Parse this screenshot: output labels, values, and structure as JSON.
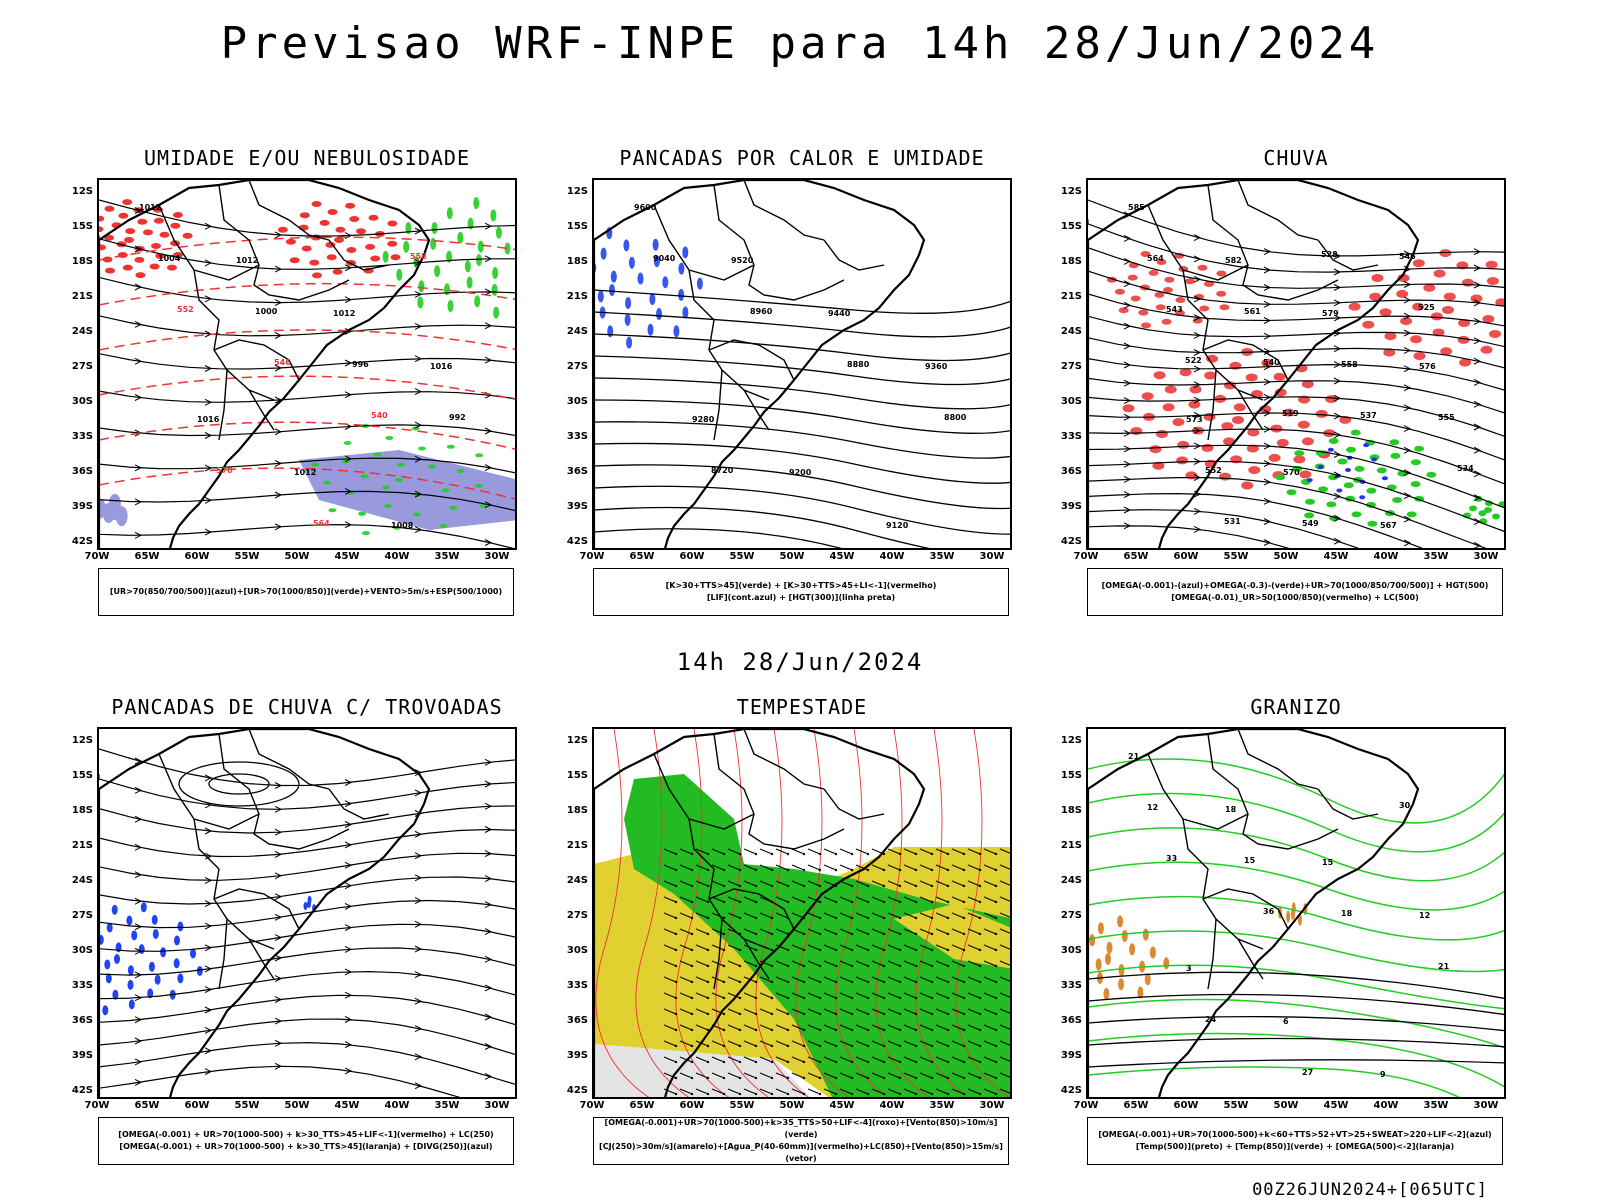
{
  "title": "Previsao WRF-INPE  para 14h 28/Jun/2024",
  "subtitle": "14h 28/Jun/2024",
  "footer": "00Z26JUN2024+[065UTC]",
  "lat_labels": [
    "12S",
    "15S",
    "18S",
    "21S",
    "24S",
    "27S",
    "30S",
    "33S",
    "36S",
    "39S",
    "42S"
  ],
  "lon_labels": [
    "70W",
    "65W",
    "60W",
    "55W",
    "50W",
    "45W",
    "40W",
    "35W",
    "30W"
  ],
  "panels": [
    {
      "title": "UMIDADE E/OU NEBULOSIDADE",
      "legend": [
        "[UR>70(850/700/500)](azul)+[UR>70(1000/850)](verde)+VENTO>5m/s+ESP(500/1000)"
      ],
      "contours": [
        "1012",
        "1012",
        "1012",
        "1016",
        "1016",
        "1012",
        "1008",
        "1004",
        "1000",
        "996",
        "992",
        "570",
        "564",
        "558",
        "552",
        "546",
        "540"
      ],
      "colors": {
        "blue": "#9999dd",
        "green": "#22cc22",
        "red": "#ee3333"
      }
    },
    {
      "title": "PANCADAS POR CALOR E UMIDADE",
      "legend": [
        "[K>30+TTS>45](verde) + [K>30+TTS>45+LI<-1](vermelho)",
        "[LIF](cont.azul) + [HGT(300)](linha preta)"
      ],
      "contours": [
        "9600",
        "9520",
        "9440",
        "9360",
        "9280",
        "9200",
        "9120",
        "9040",
        "8960",
        "8880",
        "8800",
        "8720"
      ],
      "colors": {
        "blue": "#2244ee"
      }
    },
    {
      "title": "CHUVA",
      "legend": [
        "[OMEGA(-0.001)-(azul)+OMEGA(-0.3)-(verde)+UR>70(1000/850/700/500)] + HGT(500)",
        "[OMEGA(-0.01)_UR>50(1000/850)(vermelho) + LC(500)"
      ],
      "contours": [
        "585",
        "582",
        "579",
        "576",
        "573",
        "570",
        "567",
        "564",
        "561",
        "558",
        "555",
        "552",
        "549",
        "546",
        "543",
        "540",
        "537",
        "534",
        "531",
        "528",
        "525",
        "522",
        "519"
      ],
      "colors": {
        "red": "#ee4444",
        "green": "#22cc22",
        "blue": "#2233ee"
      }
    },
    {
      "title": "PANCADAS DE CHUVA C/ TROVOADAS",
      "legend": [
        "[OMEGA(-0.001) + UR>70(1000-500) + k>30_TTS>45+LIF<-1](vermelho) + LC(250)",
        "[OMEGA(-0.001) + UR>70(1000-500) + k>30_TTS>45](laranja) + [DIVG(250)](azul)"
      ],
      "contours": [],
      "colors": {
        "blue": "#2244ee"
      }
    },
    {
      "title": "TEMPESTADE",
      "legend": [
        "[OMEGA(-0.001)+UR>70(1000-500)+k>35_TTS>50+LIF<-4](roxo)+[Vento(850)>10m/s](verde)",
        "[CJ(250)>30m/s](amarelo)+[Agua_P(40-60mm)](vermelho)+LC(850)+[Vento(850)>15m/s](vetor)"
      ],
      "contours": [],
      "colors": {
        "yellow": "#e0d030",
        "green": "#22bb22",
        "red": "#ee3333",
        "gray": "#e4e4e4"
      }
    },
    {
      "title": "GRANIZO",
      "legend": [
        "[OMEGA(-0.001)+UR>70(1000-500)+k<60+TTS>52+VT>25+SWEAT>220+LIF<-2](azul)",
        "[Temp(500)](preto) + [Temp(850)](verde) + [OMEGA(500)<-2](laranja)"
      ],
      "contours": [
        "21",
        "18",
        "15",
        "12",
        "3",
        "6",
        "9",
        "12",
        "15",
        "18",
        "21",
        "24",
        "27",
        "30",
        "33",
        "36"
      ],
      "colors": {
        "green": "#22cc22",
        "orange": "#dd8833"
      }
    }
  ]
}
